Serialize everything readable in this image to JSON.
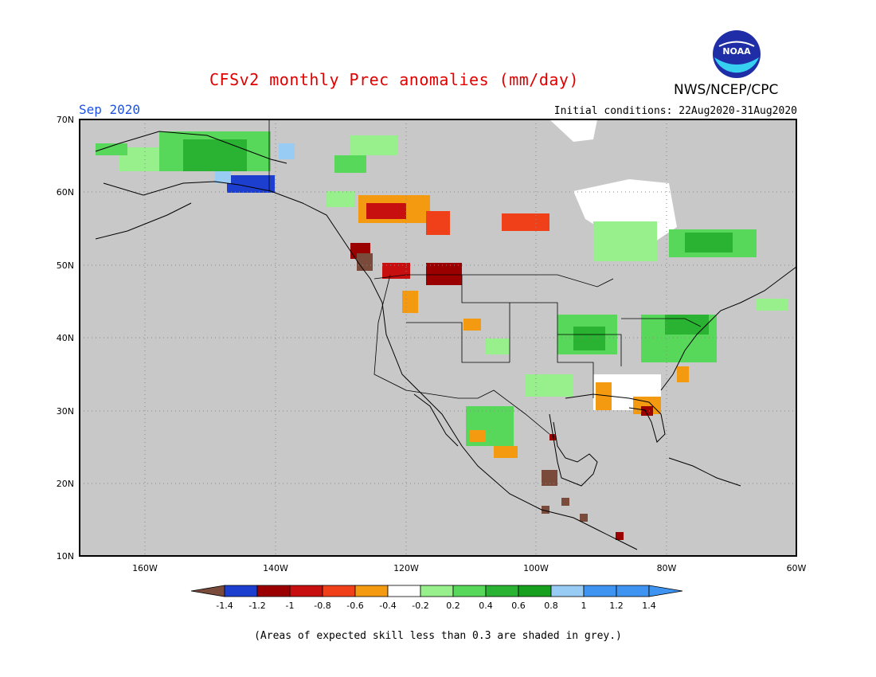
{
  "header": {
    "title": "CFSv2 monthly Prec anomalies (mm/day)",
    "agency": "NWS/NCEP/CPC",
    "logo_text": "NOAA",
    "forecast_month": "Sep 2020",
    "initial_conditions": "Initial conditions: 22Aug2020-31Aug2020"
  },
  "axes": {
    "lat_labels": [
      "70N",
      "60N",
      "50N",
      "40N",
      "30N",
      "20N",
      "10N"
    ],
    "lon_labels": [
      "160W",
      "140W",
      "120W",
      "100W",
      "80W",
      "60W"
    ]
  },
  "colorbar": {
    "labels": [
      "-1.4",
      "-1.2",
      "-1",
      "-0.8",
      "-0.6",
      "-0.4",
      "-0.2",
      "0.2",
      "0.4",
      "0.6",
      "0.8",
      "1",
      "1.2",
      "1.4"
    ],
    "colors": [
      "#7a4a3a",
      "#1d3fd0",
      "#9a0000",
      "#c80f0f",
      "#f0401a",
      "#f39a10",
      "#ffffff",
      "#98f08c",
      "#58d85a",
      "#2ab232",
      "#17a01e",
      "#98ccf5",
      "#3e94f0",
      "#3e94f0"
    ]
  },
  "map_colors": {
    "land_skill_mask": "#c8c8c8",
    "ocean": "#ffffff",
    "coast": "#000000",
    "grid": "#888888"
  },
  "footer": "(Areas of expected skill less than 0.3 are shaded in grey.)"
}
